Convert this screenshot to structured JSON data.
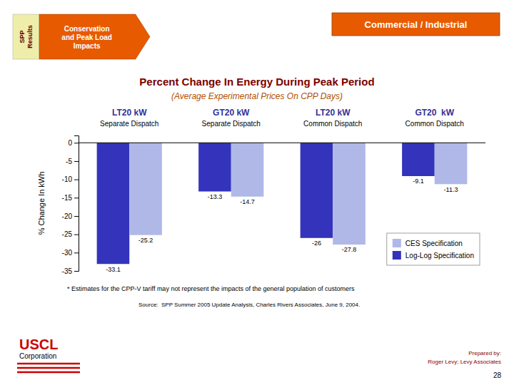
{
  "chart_data": {
    "type": "bar",
    "title": "Percent Change In Energy During Peak Period",
    "subtitle": "(Average Experimental Prices On CPP Days)",
    "ylabel": "% Change In kWh",
    "categories": [
      "LT20 kW",
      "GT20 kW",
      "LT20 kW",
      "GT20  kW"
    ],
    "subcategories": [
      "Separate Dispatch",
      "Separate Dispatch",
      "Common Dispatch",
      "Common Dispatch"
    ],
    "series": [
      {
        "name": "Log-Log Specification",
        "color": "#3333bb",
        "values": [
          -33.1,
          -13.3,
          -26,
          -9.1
        ]
      },
      {
        "name": "CES Specification",
        "color": "#b0b8e8",
        "values": [
          -25.2,
          -14.7,
          -27.8,
          -11.3
        ]
      }
    ],
    "ylim": [
      -35,
      2
    ],
    "yticks": [
      0,
      -5,
      -10,
      -15,
      -20,
      -25,
      -30,
      -35
    ],
    "grid": false,
    "legend": "lower right",
    "data_labels": true,
    "annotations": [
      "SPP\nResults",
      "Conservation\nand Peak Load\nImpacts",
      "Commercial / Industrial",
      "* Estimates for the CPP-V tariff may not represent the impacts of the general population of customers",
      "Source:  SPP Summer 2005 Update Analysis, Charles Rivers Associates, June 9, 2004.",
      "USCL",
      "Corporation",
      "Prepared by:",
      "Roger Levy; Levy Associates",
      "28"
    ]
  }
}
